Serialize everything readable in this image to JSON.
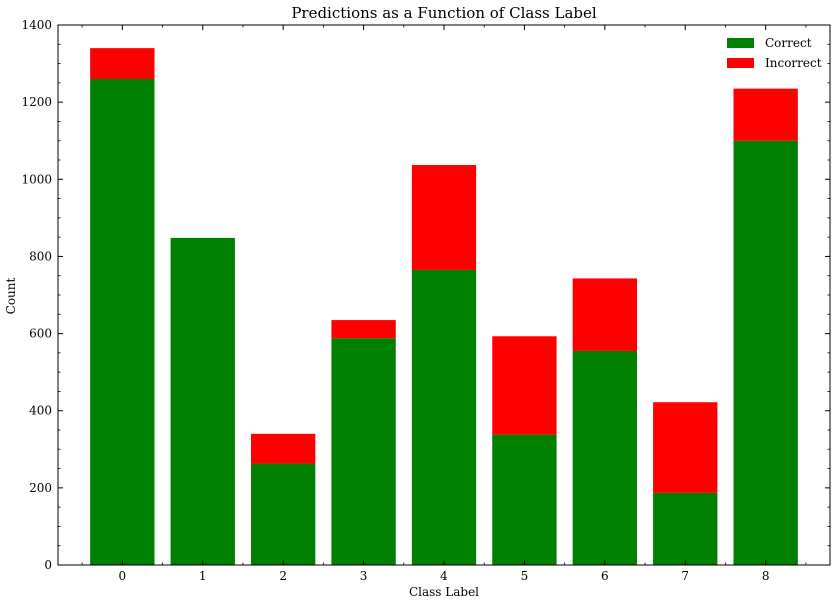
{
  "chart_data": {
    "type": "bar",
    "stacked": true,
    "title": "Predictions as a Function of Class Label",
    "xlabel": "Class Label",
    "ylabel": "Count",
    "categories": [
      "0",
      "1",
      "2",
      "3",
      "4",
      "5",
      "6",
      "7",
      "8"
    ],
    "series": [
      {
        "name": "Correct",
        "color": "#008000",
        "values": [
          1260,
          848,
          263,
          588,
          765,
          338,
          555,
          187,
          1100
        ]
      },
      {
        "name": "Incorrect",
        "color": "#ff0000",
        "values": [
          80,
          0,
          77,
          47,
          272,
          255,
          188,
          235,
          135
        ]
      }
    ],
    "ylim": [
      0,
      1400
    ],
    "yticks": [
      0,
      200,
      400,
      600,
      800,
      1000,
      1200,
      1400
    ],
    "yminor_step": 50,
    "grid": false,
    "legend": "top-right"
  }
}
